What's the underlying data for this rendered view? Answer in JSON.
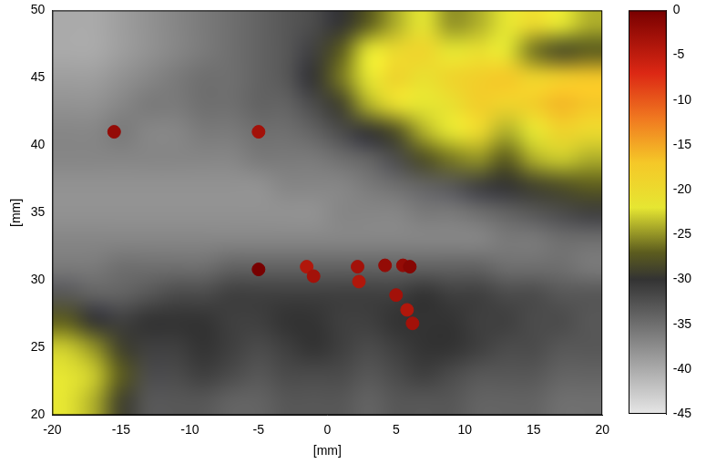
{
  "chart_data": {
    "type": "heatmap",
    "xlabel": "[mm]",
    "ylabel": "[mm]",
    "xlim": [
      -20,
      20
    ],
    "ylim": [
      20,
      50
    ],
    "xticks": [
      -20,
      -15,
      -10,
      -5,
      0,
      5,
      10,
      15,
      20
    ],
    "yticks": [
      20,
      25,
      30,
      35,
      40,
      45,
      50
    ],
    "grid": false,
    "cells": {
      "x": [
        -19,
        -17,
        -15,
        -13,
        -11,
        -9,
        -7,
        -5,
        -3,
        -1,
        1,
        3,
        5,
        7,
        9,
        11,
        13,
        15,
        17,
        19
      ],
      "y": [
        21,
        23,
        25,
        27,
        29,
        31,
        33,
        35,
        37,
        39,
        41,
        43,
        45,
        47,
        49
      ],
      "values": [
        [
          -22,
          -24,
          -29,
          -33,
          -33,
          -33,
          -34,
          -34,
          -33,
          -33,
          -33,
          -34,
          -33,
          -33,
          -33,
          -34,
          -34,
          -34,
          -35,
          -35
        ],
        [
          -22,
          -23,
          -27,
          -32,
          -32,
          -31,
          -32,
          -33,
          -32,
          -32,
          -32,
          -33,
          -32,
          -31,
          -32,
          -33,
          -33,
          -33,
          -34,
          -34
        ],
        [
          -23,
          -25,
          -29,
          -31,
          -31,
          -30,
          -31,
          -32,
          -31,
          -30,
          -31,
          -32,
          -31,
          -30,
          -30,
          -31,
          -32,
          -32,
          -33,
          -33
        ],
        [
          -27,
          -30,
          -31,
          -30,
          -30,
          -30,
          -31,
          -31,
          -30,
          -30,
          -31,
          -31,
          -30,
          -30,
          -30,
          -31,
          -31,
          -32,
          -32,
          -33
        ],
        [
          -33,
          -34,
          -34,
          -33,
          -32,
          -32,
          -31,
          -31,
          -31,
          -31,
          -31,
          -31,
          -31,
          -30,
          -31,
          -31,
          -32,
          -32,
          -33,
          -33
        ],
        [
          -36,
          -36,
          -35,
          -35,
          -35,
          -35,
          -34,
          -34,
          -34,
          -34,
          -34,
          -34,
          -34,
          -34,
          -34,
          -34,
          -35,
          -35,
          -35,
          -36
        ],
        [
          -37,
          -37,
          -37,
          -37,
          -37,
          -37,
          -37,
          -37,
          -37,
          -37,
          -37,
          -37,
          -37,
          -37,
          -37,
          -37,
          -36,
          -36,
          -35,
          -35
        ],
        [
          -38,
          -38,
          -38,
          -38,
          -38,
          -38,
          -38,
          -38,
          -38,
          -38,
          -37,
          -37,
          -37,
          -36,
          -36,
          -35,
          -34,
          -33,
          -32,
          -31
        ],
        [
          -38,
          -38,
          -38,
          -38,
          -38,
          -38,
          -38,
          -38,
          -37,
          -37,
          -37,
          -36,
          -35,
          -34,
          -33,
          -31,
          -30,
          -29,
          -28,
          -27
        ],
        [
          -37,
          -37,
          -37,
          -37,
          -37,
          -37,
          -37,
          -36,
          -36,
          -36,
          -35,
          -34,
          -32,
          -28,
          -26,
          -25,
          -27,
          -24,
          -23,
          -24
        ],
        [
          -37,
          -37,
          -36,
          -37,
          -37,
          -36,
          -36,
          -35,
          -35,
          -34,
          -32,
          -30,
          -28,
          -24,
          -22,
          -20,
          -24,
          -22,
          -19,
          -20
        ],
        [
          -38,
          -38,
          -37,
          -36,
          -36,
          -35,
          -35,
          -34,
          -34,
          -32,
          -29,
          -24,
          -21,
          -22,
          -21,
          -18,
          -19,
          -18,
          -16,
          -17
        ],
        [
          -39,
          -39,
          -38,
          -37,
          -36,
          -35,
          -35,
          -34,
          -33,
          -30,
          -26,
          -22,
          -19,
          -21,
          -19,
          -18,
          -17,
          -19,
          -18,
          -17
        ],
        [
          -40,
          -40,
          -39,
          -38,
          -37,
          -36,
          -35,
          -34,
          -33,
          -31,
          -27,
          -22,
          -20,
          -19,
          -22,
          -21,
          -22,
          -26,
          -28,
          -27
        ],
        [
          -40,
          -40,
          -39,
          -38,
          -37,
          -36,
          -35,
          -34,
          -33,
          -32,
          -30,
          -27,
          -24,
          -22,
          -25,
          -24,
          -22,
          -20,
          -22,
          -24
        ]
      ]
    },
    "spots": {
      "x": [
        -15.5,
        -5,
        -5,
        -1.5,
        -1,
        2.2,
        2.3,
        4.2,
        5.5,
        6,
        5,
        5.8,
        6.2
      ],
      "y": [
        41,
        41,
        30.8,
        31,
        30.3,
        31,
        29.9,
        31.1,
        31.1,
        31,
        28.9,
        27.8,
        26.8
      ],
      "values": [
        -2,
        -3,
        0,
        -4,
        -3,
        -3,
        -4,
        -2,
        -2,
        -1,
        -3,
        -4,
        -3
      ]
    },
    "colorbar": {
      "range": [
        -45,
        0
      ],
      "ticks": [
        0,
        -5,
        -10,
        -15,
        -20,
        -25,
        -30,
        -35,
        -40,
        -45
      ]
    }
  }
}
